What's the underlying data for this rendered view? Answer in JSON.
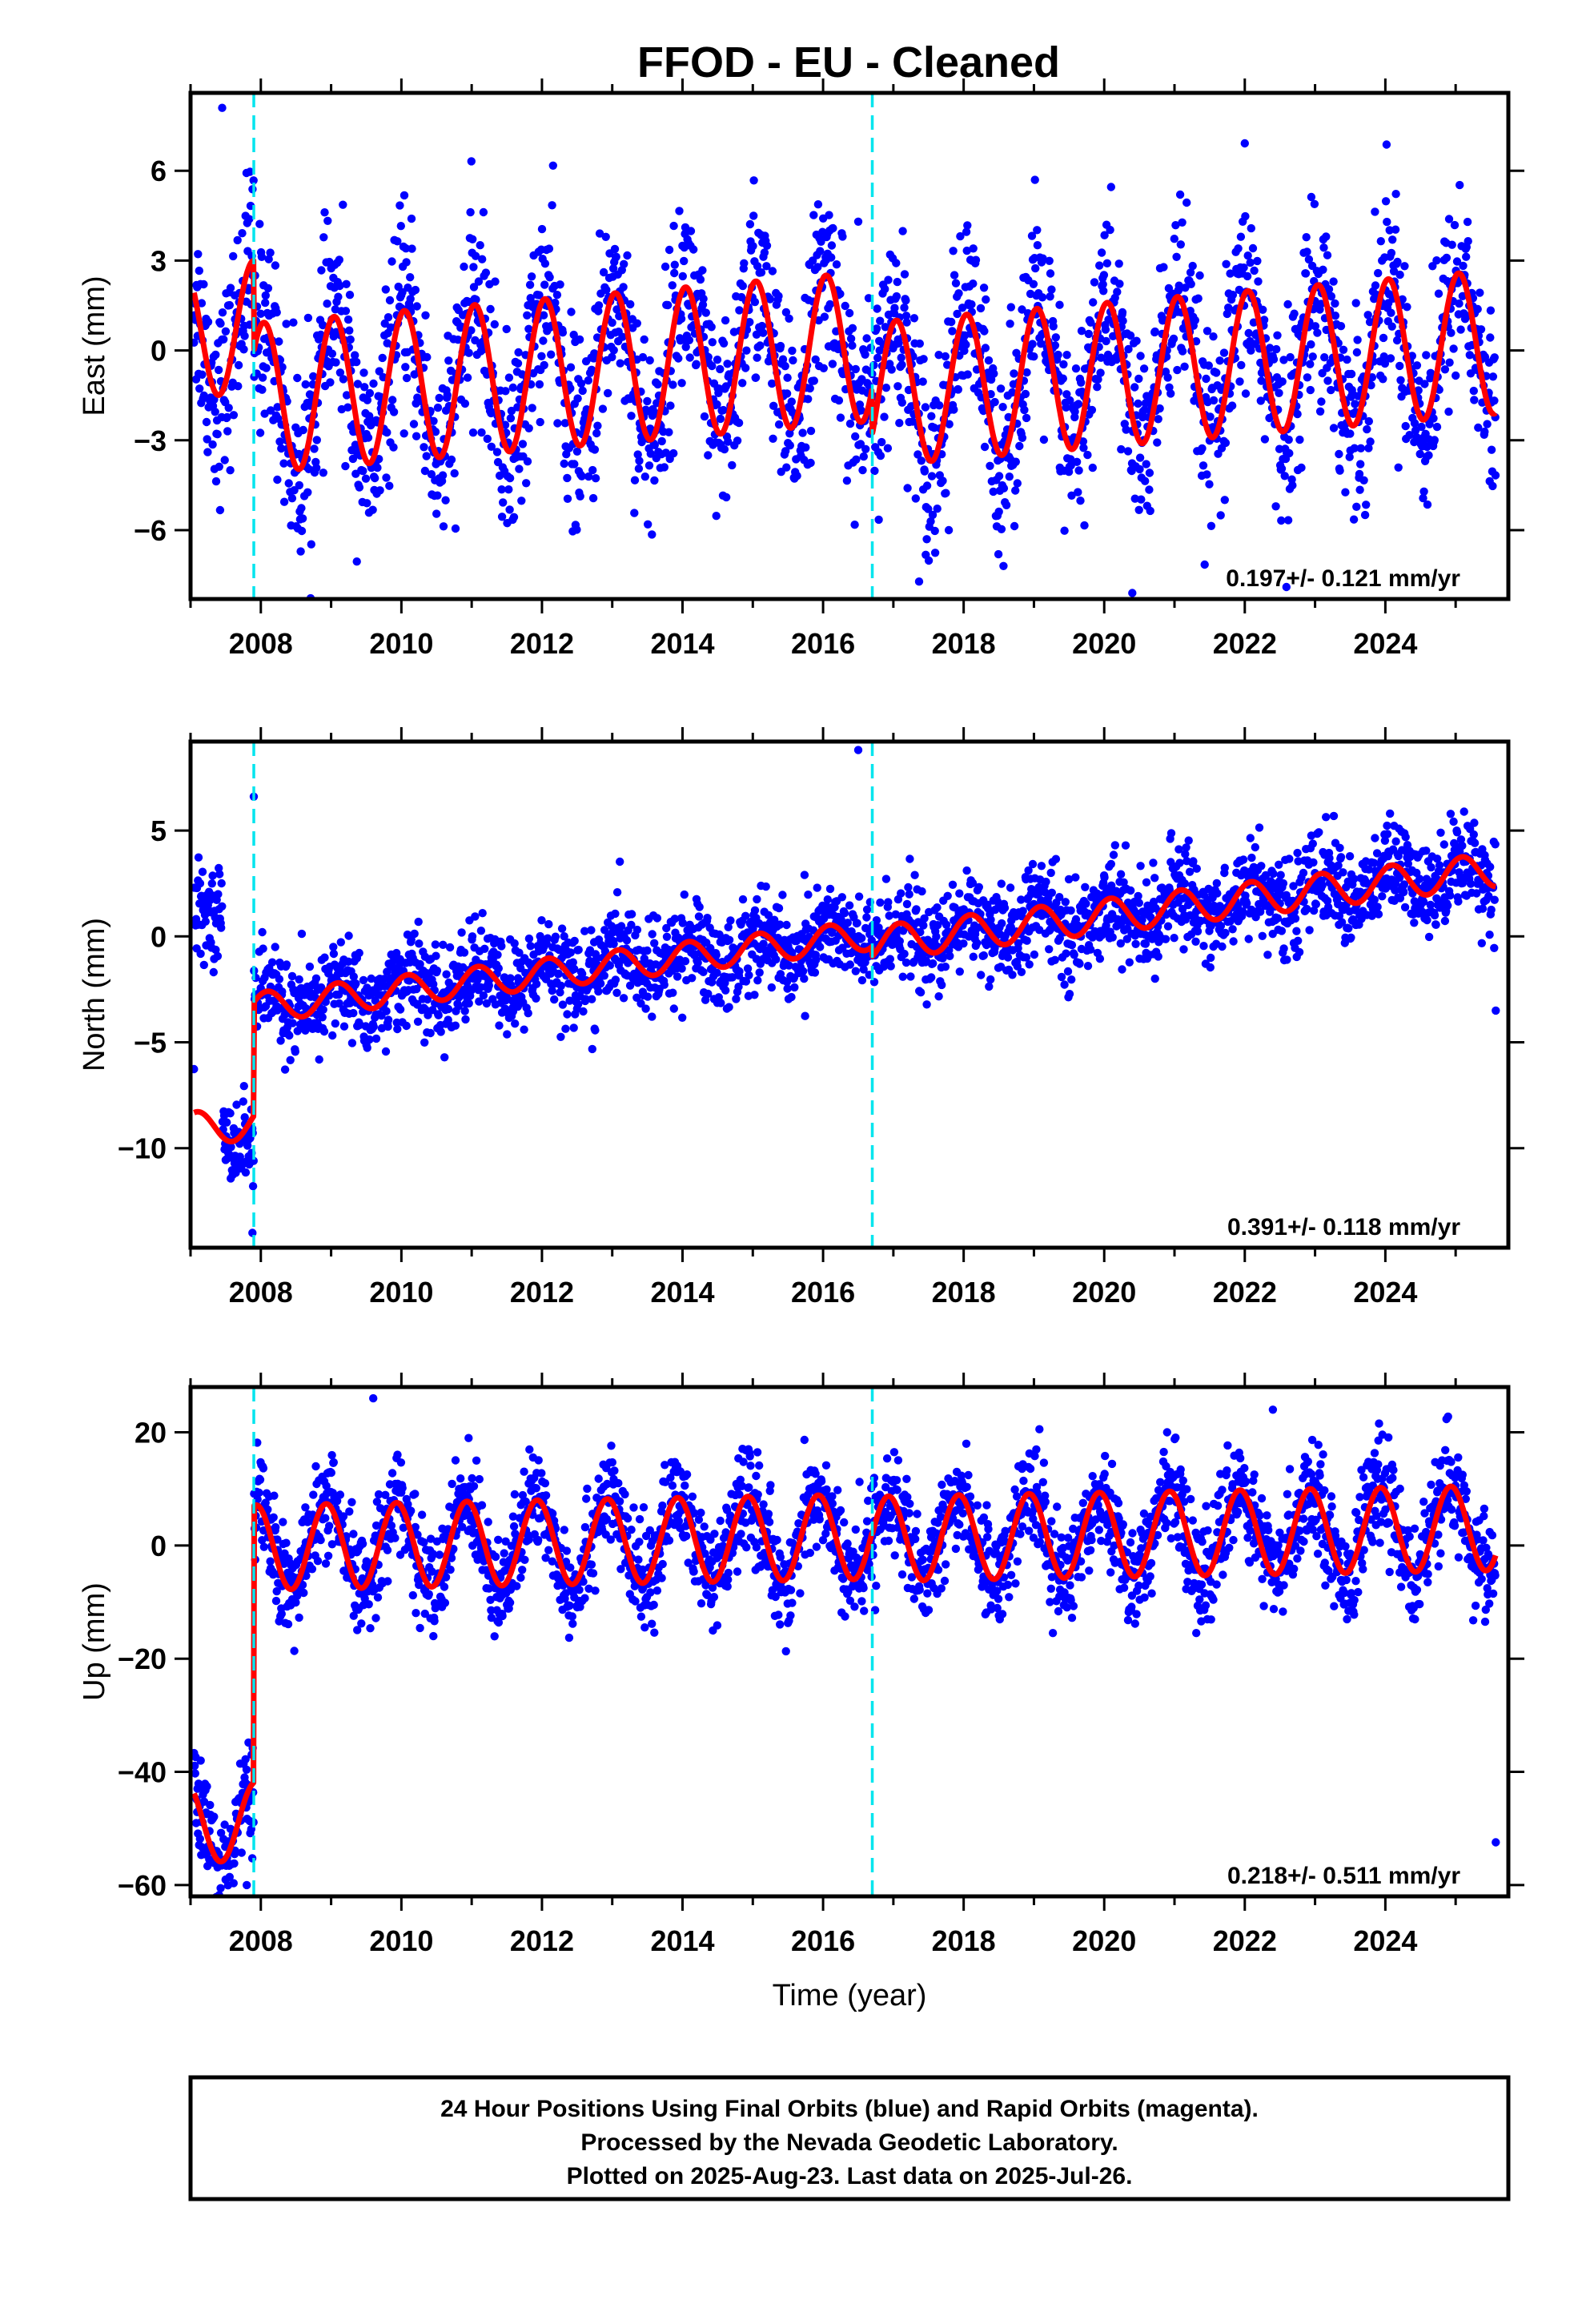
{
  "title": "FFOD  - EU - Cleaned",
  "footer": {
    "lines": [
      "24 Hour Positions Using Final Orbits (blue) and Rapid Orbits (magenta).",
      "Processed by the Nevada Geodetic Laboratory.",
      "Plotted on 2025-Aug-23. Last data on 2025-Jul-26."
    ]
  },
  "colors": {
    "points": "#0000ff",
    "model": "#ff0000",
    "steps": "#00e5ee",
    "frame": "#000000"
  },
  "chart_data": [
    {
      "type": "scatter",
      "name": "east",
      "ylabel": "East (mm)",
      "xlabel": "",
      "xlim": [
        2007.0,
        2025.75
      ],
      "ylim": [
        -8.3,
        8.6
      ],
      "xticks": [
        2008,
        2010,
        2012,
        2014,
        2016,
        2018,
        2020,
        2022,
        2024
      ],
      "yticks": [
        -6,
        -3,
        0,
        3,
        6
      ],
      "step_lines": [
        2007.9,
        2016.7
      ],
      "rate_label": "0.197+/- 0.121 mm/yr",
      "data_range": [
        2007.05,
        2025.57
      ],
      "model": {
        "segments": [
          {
            "start": 2007.05,
            "end": 2007.9,
            "offset": 2.4,
            "amp": 2.2,
            "phase": 2.2
          },
          {
            "start": 2007.9,
            "end": 2016.7,
            "offset": 0.0,
            "amp": 2.5,
            "phase": 1.3
          },
          {
            "start": 2016.7,
            "end": 2025.57,
            "offset": -1.6,
            "amp": 2.4,
            "phase": 1.3
          }
        ],
        "rate": 0.197,
        "ref_year": 2016.0,
        "noise": 1.6
      },
      "outliers": [
        [
          2007.45,
          8.1
        ],
        [
          2020.4,
          -8.1
        ],
        [
          2016.5,
          4.3
        ]
      ]
    },
    {
      "type": "scatter",
      "name": "north",
      "ylabel": "North (mm)",
      "xlabel": "",
      "xlim": [
        2007.0,
        2025.75
      ],
      "ylim": [
        -14.7,
        9.2
      ],
      "xticks": [
        2008,
        2010,
        2012,
        2014,
        2016,
        2018,
        2020,
        2022,
        2024
      ],
      "yticks": [
        -10,
        -5,
        0,
        5
      ],
      "step_lines": [
        2007.9,
        2016.7
      ],
      "rate_label": "0.391+/- 0.118 mm/yr",
      "data_range": [
        2007.05,
        2025.57
      ],
      "model": {
        "segments": [
          {
            "start": 2007.05,
            "end": 2007.9,
            "offset": -5.6,
            "amp": 0.8,
            "phase": 1.0
          },
          {
            "start": 2007.9,
            "end": 2016.7,
            "offset": -0.2,
            "amp": 0.7,
            "phase": 1.0
          },
          {
            "start": 2016.7,
            "end": 2025.57,
            "offset": -0.6,
            "amp": 0.8,
            "phase": 1.0
          }
        ],
        "rate": 0.391,
        "ref_year": 2016.0,
        "noise": 1.1
      },
      "point_clusters": [
        {
          "start": 2007.05,
          "end": 2007.45,
          "center": 1.2,
          "spread": 1.2
        },
        {
          "start": 2007.45,
          "end": 2007.9,
          "center": -9.6,
          "spread": 1.3
        }
      ],
      "outliers": [
        [
          2016.5,
          8.8
        ],
        [
          2007.9,
          6.6
        ],
        [
          2007.88,
          -14.0
        ]
      ]
    },
    {
      "type": "scatter",
      "name": "up",
      "ylabel": "Up (mm)",
      "xlabel": "Time (year)",
      "xlim": [
        2007.0,
        2025.75
      ],
      "ylim": [
        -62.0,
        28.0
      ],
      "xticks": [
        2008,
        2010,
        2012,
        2014,
        2016,
        2018,
        2020,
        2022,
        2024
      ],
      "yticks": [
        -60,
        -40,
        -20,
        0,
        20
      ],
      "step_lines": [
        2007.9,
        2016.7
      ],
      "rate_label": "0.218+/- 0.511 mm/yr",
      "data_range": [
        2007.05,
        2025.57
      ],
      "model": {
        "segments": [
          {
            "start": 2007.05,
            "end": 2007.9,
            "offset": -47.0,
            "amp": 7.0,
            "phase": 2.0
          },
          {
            "start": 2007.9,
            "end": 2016.7,
            "offset": 1.4,
            "amp": 7.5,
            "phase": 2.0
          },
          {
            "start": 2016.7,
            "end": 2025.57,
            "offset": 1.0,
            "amp": 7.5,
            "phase": 2.0
          }
        ],
        "rate": 0.218,
        "ref_year": 2016.0,
        "noise": 4.5
      },
      "outliers": [
        [
          2009.6,
          26.0
        ],
        [
          2022.4,
          24.0
        ],
        [
          2007.8,
          -60.0
        ]
      ]
    }
  ]
}
